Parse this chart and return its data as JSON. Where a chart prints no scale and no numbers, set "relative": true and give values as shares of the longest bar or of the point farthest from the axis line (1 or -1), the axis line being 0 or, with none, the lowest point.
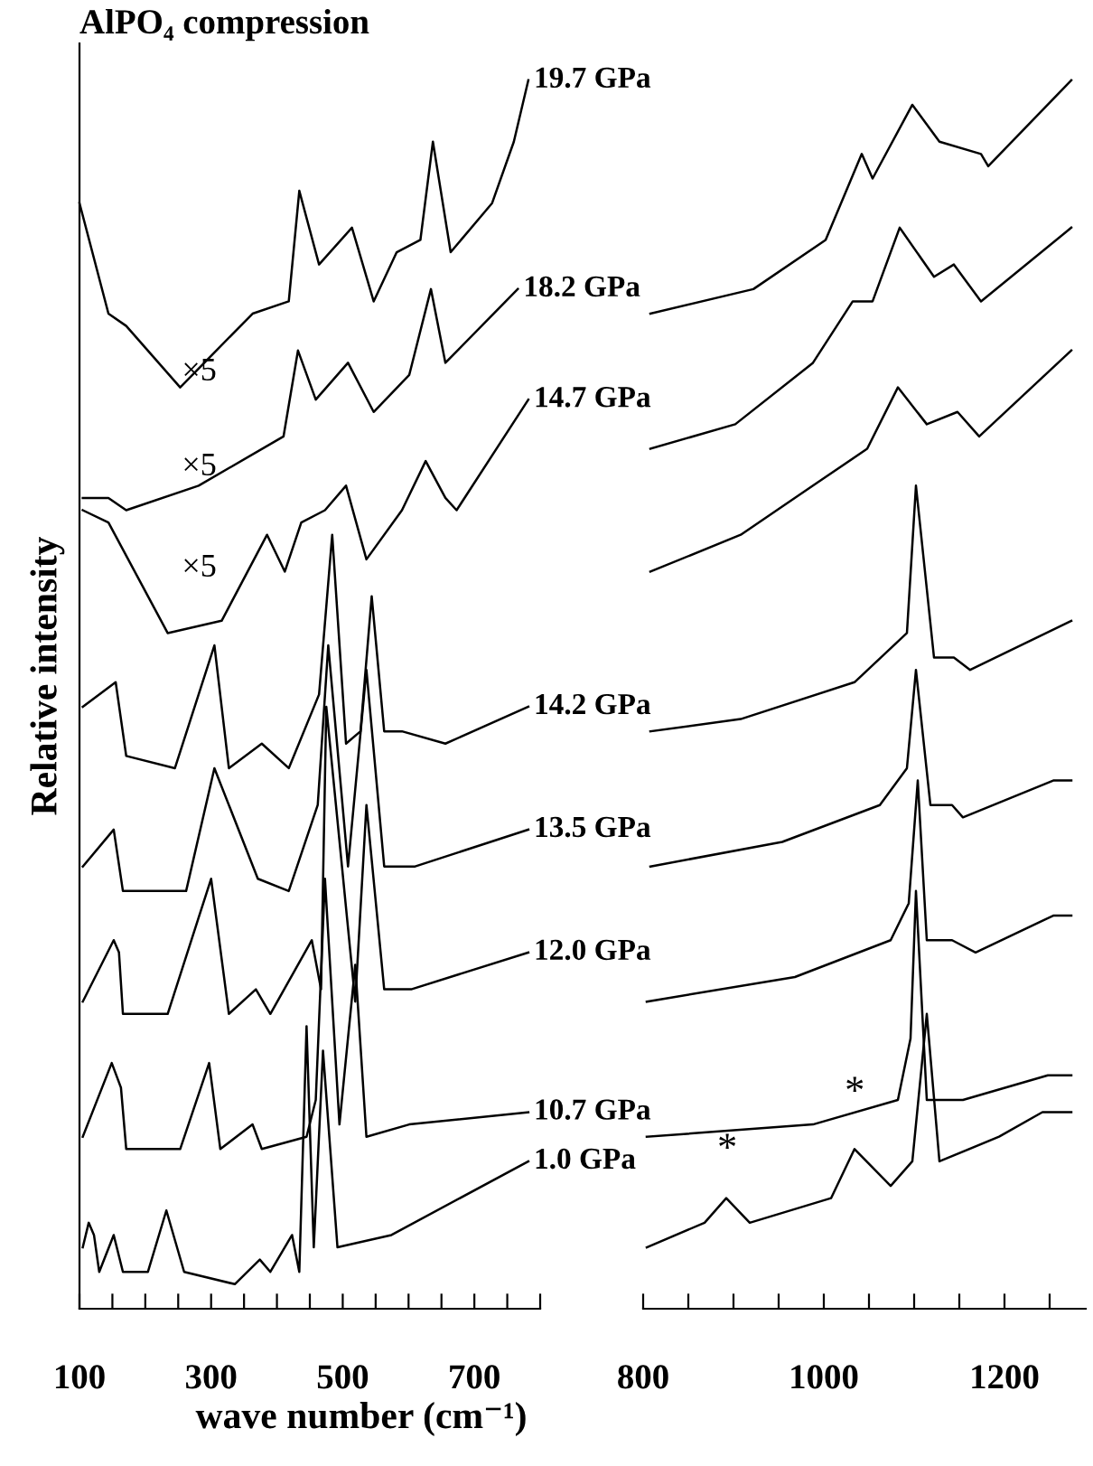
{
  "chart_data": [
    {
      "type": "line",
      "title": "AlPO₄ compression",
      "xlabel": "wave number (cm⁻¹)",
      "ylabel": "Relative intensity",
      "relative": true,
      "tick_labels": "x",
      "marker": "none",
      "line_style": "solid",
      "xlim": [
        100,
        800
      ],
      "xticks": [
        100,
        {
          "value": 150,
          "label": null
        },
        {
          "value": 200,
          "label": null
        },
        {
          "value": 250,
          "label": null
        },
        300,
        {
          "value": 350,
          "label": null
        },
        {
          "value": 400,
          "label": null
        },
        {
          "value": 450,
          "label": null
        },
        500,
        {
          "value": 550,
          "label": null
        },
        {
          "value": 600,
          "label": null
        },
        {
          "value": 650,
          "label": null
        },
        700,
        {
          "value": 750,
          "label": null
        },
        {
          "value": 800,
          "label": null
        }
      ],
      "series": [
        {
          "name": "19.7 GPa",
          "color": "#000000",
          "x": [
            100,
            144,
            171,
            253,
            363,
            418,
            434,
            464,
            514,
            547,
            582,
            618,
            637,
            664,
            727,
            760,
            782
          ],
          "values": [
            0.9,
            0.81,
            0.8,
            0.75,
            0.81,
            0.82,
            0.91,
            0.85,
            0.88,
            0.82,
            0.86,
            0.87,
            0.95,
            0.86,
            0.9,
            0.95,
            1.0
          ]
        },
        {
          "name": "18.2 GPa",
          "color": "#000000",
          "x": [
            105,
            144,
            171,
            281,
            410,
            432,
            459,
            508,
            547,
            601,
            634,
            656,
            766
          ],
          "values": [
            0.66,
            0.66,
            0.65,
            0.67,
            0.71,
            0.78,
            0.74,
            0.77,
            0.73,
            0.76,
            0.83,
            0.77,
            0.83
          ]
        },
        {
          "name": "14.7 GPa",
          "color": "#000000",
          "x": [
            105,
            144,
            234,
            316,
            385,
            412,
            437,
            473,
            505,
            536,
            590,
            626,
            656,
            673,
            782
          ],
          "values": [
            0.65,
            0.64,
            0.55,
            0.56,
            0.63,
            0.6,
            0.64,
            0.65,
            0.67,
            0.61,
            0.65,
            0.69,
            0.66,
            0.65,
            0.74
          ]
        },
        {
          "name": "14.2 GPa",
          "color": "#000000",
          "x": [
            105,
            155,
            171,
            245,
            305,
            327,
            377,
            418,
            464,
            484,
            505,
            527,
            544,
            563,
            590,
            656,
            782
          ],
          "values": [
            0.49,
            0.51,
            0.45,
            0.44,
            0.54,
            0.44,
            0.46,
            0.44,
            0.5,
            0.63,
            0.46,
            0.47,
            0.58,
            0.47,
            0.47,
            0.46,
            0.49
          ]
        },
        {
          "name": "13.5 GPa",
          "color": "#000000",
          "x": [
            105,
            152,
            166,
            262,
            305,
            371,
            418,
            462,
            478,
            508,
            536,
            563,
            610,
            782
          ],
          "values": [
            0.36,
            0.39,
            0.34,
            0.34,
            0.44,
            0.35,
            0.34,
            0.41,
            0.54,
            0.36,
            0.52,
            0.36,
            0.36,
            0.39
          ]
        },
        {
          "name": "12.0 GPa",
          "color": "#000000",
          "x": [
            105,
            152,
            160,
            166,
            234,
            300,
            327,
            368,
            390,
            453,
            467,
            475,
            519,
            536,
            563,
            604,
            782
          ],
          "values": [
            0.25,
            0.3,
            0.29,
            0.24,
            0.24,
            0.35,
            0.24,
            0.26,
            0.24,
            0.3,
            0.26,
            0.49,
            0.25,
            0.41,
            0.26,
            0.26,
            0.29
          ]
        },
        {
          "name": "10.7 GPa",
          "color": "#000000",
          "x": [
            105,
            149,
            163,
            171,
            253,
            297,
            314,
            363,
            377,
            445,
            459,
            473,
            495,
            519,
            536,
            601,
            782
          ],
          "values": [
            0.14,
            0.2,
            0.18,
            0.13,
            0.13,
            0.2,
            0.13,
            0.15,
            0.13,
            0.14,
            0.17,
            0.35,
            0.15,
            0.28,
            0.14,
            0.15,
            0.16
          ]
        },
        {
          "name": "1.0 GPa",
          "color": "#000000",
          "x": [
            105,
            114,
            122,
            130,
            152,
            166,
            204,
            232,
            259,
            336,
            374,
            390,
            423,
            434,
            445,
            456,
            470,
            492,
            574,
            782
          ],
          "values": [
            0.05,
            0.07,
            0.06,
            0.03,
            0.06,
            0.03,
            0.03,
            0.08,
            0.03,
            0.02,
            0.04,
            0.03,
            0.06,
            0.03,
            0.23,
            0.05,
            0.21,
            0.05,
            0.06,
            0.12
          ]
        }
      ],
      "annotations": [
        "×5",
        "×5",
        "×5"
      ]
    },
    {
      "type": "line",
      "relative": true,
      "tick_labels": "x",
      "marker": "none",
      "line_style": "solid",
      "xlim": [
        800,
        1290
      ],
      "xticks": [
        800,
        {
          "value": 850,
          "label": null
        },
        {
          "value": 900,
          "label": null
        },
        {
          "value": 950,
          "label": null
        },
        1000,
        {
          "value": 1050,
          "label": null
        },
        {
          "value": 1100,
          "label": null
        },
        {
          "value": 1150,
          "label": null
        },
        1200,
        {
          "value": 1250,
          "label": null
        }
      ],
      "series": [
        {
          "color": "#000000",
          "x": [
            808,
            922,
            1002,
            1042,
            1054,
            1098,
            1128,
            1174,
            1182,
            1274
          ],
          "values": [
            0.81,
            0.83,
            0.87,
            0.94,
            0.92,
            0.98,
            0.95,
            0.94,
            0.93,
            1.0
          ]
        },
        {
          "color": "#000000",
          "x": [
            808,
            902,
            988,
            1032,
            1054,
            1084,
            1122,
            1144,
            1174,
            1274
          ],
          "values": [
            0.7,
            0.72,
            0.77,
            0.82,
            0.82,
            0.88,
            0.84,
            0.85,
            0.82,
            0.88
          ]
        },
        {
          "color": "#000000",
          "x": [
            808,
            908,
            988,
            1048,
            1082,
            1114,
            1148,
            1172,
            1274
          ],
          "values": [
            0.6,
            0.63,
            0.67,
            0.7,
            0.75,
            0.72,
            0.73,
            0.71,
            0.78
          ]
        },
        {
          "color": "#000000",
          "x": [
            808,
            908,
            1034,
            1092,
            1102,
            1122,
            1144,
            1162,
            1274
          ],
          "values": [
            0.47,
            0.48,
            0.51,
            0.55,
            0.67,
            0.53,
            0.53,
            0.52,
            0.56
          ]
        },
        {
          "color": "#000000",
          "x": [
            808,
            954,
            1062,
            1092,
            1102,
            1118,
            1142,
            1154,
            1254,
            1274
          ],
          "values": [
            0.36,
            0.38,
            0.41,
            0.44,
            0.52,
            0.41,
            0.41,
            0.4,
            0.43,
            0.43
          ]
        },
        {
          "color": "#000000",
          "x": [
            804,
            968,
            1074,
            1094,
            1104,
            1114,
            1142,
            1168,
            1254,
            1274
          ],
          "values": [
            0.25,
            0.27,
            0.3,
            0.33,
            0.43,
            0.3,
            0.3,
            0.29,
            0.32,
            0.32
          ]
        },
        {
          "color": "#000000",
          "x": [
            804,
            988,
            1082,
            1096,
            1102,
            1114,
            1154,
            1248,
            1274
          ],
          "values": [
            0.14,
            0.15,
            0.17,
            0.22,
            0.34,
            0.17,
            0.17,
            0.19,
            0.19
          ]
        },
        {
          "color": "#000000",
          "x": [
            804,
            868,
            892,
            918,
            1008,
            1034,
            1074,
            1098,
            1114,
            1128,
            1194,
            1242,
            1274
          ],
          "values": [
            0.05,
            0.07,
            0.09,
            0.07,
            0.09,
            0.13,
            0.1,
            0.12,
            0.24,
            0.12,
            0.14,
            0.16,
            0.16
          ]
        }
      ],
      "annotations": [
        "*",
        "*"
      ]
    }
  ]
}
